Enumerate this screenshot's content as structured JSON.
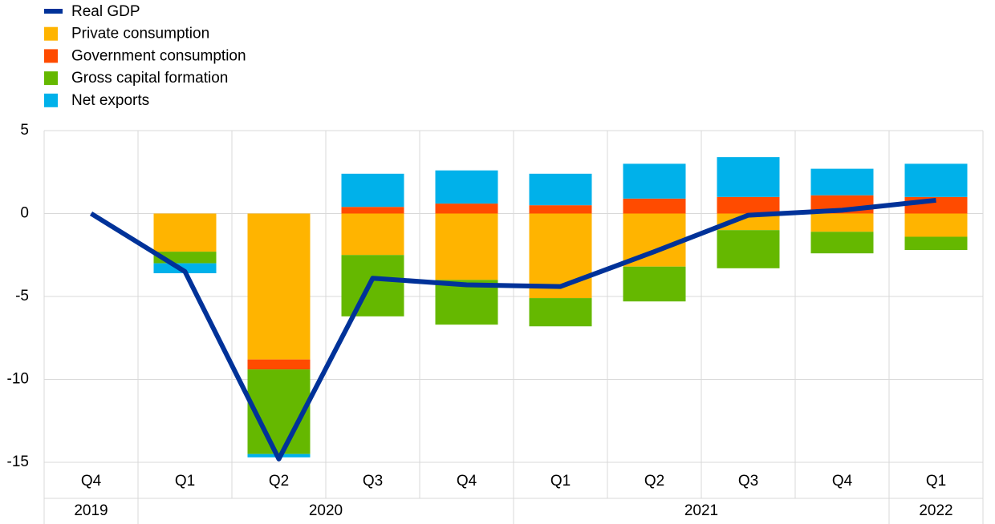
{
  "chart_data": {
    "type": "bar",
    "categories": [
      "Q4",
      "Q1",
      "Q2",
      "Q3",
      "Q4",
      "Q1",
      "Q2",
      "Q3",
      "Q4",
      "Q1"
    ],
    "years": [
      "2019",
      "2020",
      "2020",
      "2020",
      "2020",
      "2021",
      "2021",
      "2021",
      "2021",
      "2022"
    ],
    "series": [
      {
        "name": "Real GDP",
        "type": "line",
        "color": "#003299",
        "values": [
          0,
          -3.5,
          -14.8,
          -3.9,
          -4.3,
          -4.4,
          -2.3,
          -0.1,
          0.2,
          0.8
        ]
      },
      {
        "name": "Private consumption",
        "type": "bar",
        "color": "#ffb400",
        "values": [
          0,
          -2.3,
          -8.8,
          -2.5,
          -4.0,
          -5.1,
          -3.2,
          -1.0,
          -1.1,
          -1.4
        ]
      },
      {
        "name": "Government consumption",
        "type": "bar",
        "color": "#ff4b00",
        "values": [
          0,
          0,
          -0.6,
          0.4,
          0.6,
          0.5,
          0.9,
          1.0,
          1.1,
          1.0
        ]
      },
      {
        "name": "Gross capital formation",
        "type": "bar",
        "color": "#65b800",
        "values": [
          0,
          -0.7,
          -5.1,
          -3.7,
          -2.7,
          -1.7,
          -2.1,
          -2.3,
          -1.3,
          -0.8
        ]
      },
      {
        "name": "Net exports",
        "type": "bar",
        "color": "#00b1ea",
        "values": [
          0,
          -0.6,
          -0.2,
          2.0,
          2.0,
          1.9,
          2.1,
          2.4,
          1.6,
          2.0
        ]
      }
    ],
    "ylim": [
      -15,
      5
    ],
    "yticks": [
      -15,
      -10,
      -5,
      0,
      5
    ],
    "grid": true,
    "legend": "top-left"
  }
}
